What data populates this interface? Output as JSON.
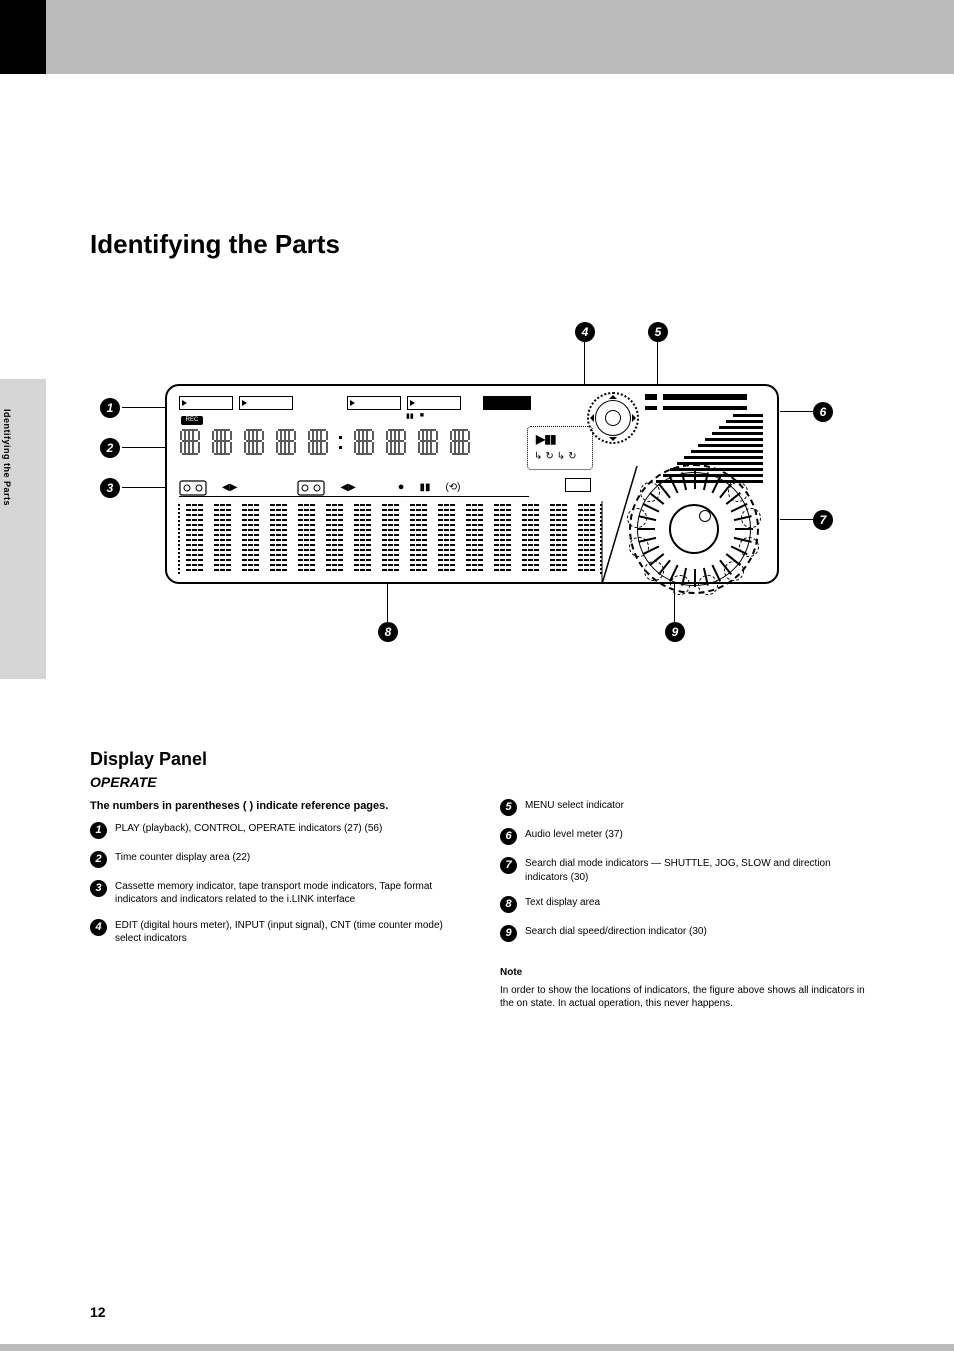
{
  "page": {
    "number": "12",
    "side_tab": "Identifying the Parts",
    "section_title": "Identifying the Parts",
    "subsection_title": "Display Panel",
    "operate_label": "OPERATE",
    "intro": "The numbers in parentheses (  ) indicate reference pages."
  },
  "rec_label": "REC",
  "callouts": {
    "left": [
      "1",
      "2",
      "3"
    ],
    "top": [
      "4",
      "5"
    ],
    "right": [
      "6",
      "7"
    ],
    "bottom": [
      "8",
      "9"
    ]
  },
  "diagram": {
    "amp_slots": 9,
    "colon_after_index": 5,
    "dot_columns": 15,
    "bars_steps_count": 12,
    "bars_steps_base_width": 30,
    "bars_steps_grow": 7,
    "shuttle_ticks": 28,
    "crescents": 10
  },
  "list_left": [
    {
      "n": "1",
      "text": "PLAY (playback), CONTROL, OPERATE indicators (27) (56)"
    },
    {
      "n": "2",
      "text": "Time counter display area (22)"
    },
    {
      "n": "3",
      "text": "Cassette memory indicator, tape transport mode indicators, Tape format indicators and indicators related to the i.LINK interface"
    },
    {
      "n": "4",
      "text": "EDIT (digital hours meter), INPUT (input signal), CNT (time counter mode) select indicators"
    }
  ],
  "list_right": [
    {
      "n": "5",
      "text": "MENU select indicator"
    },
    {
      "n": "6",
      "text": "Audio level meter (37)"
    },
    {
      "n": "7",
      "text": "Search dial mode indicators — SHUTTLE, JOG, SLOW and direction indicators (30)"
    },
    {
      "n": "8",
      "text": "Text display area"
    },
    {
      "n": "9",
      "text": "Search dial speed/direction indicator (30)"
    }
  ],
  "note": {
    "heading": "Note",
    "body": "In order to show the locations of indicators, the figure above shows all indicators in the on state. In actual operation, this never happens."
  }
}
